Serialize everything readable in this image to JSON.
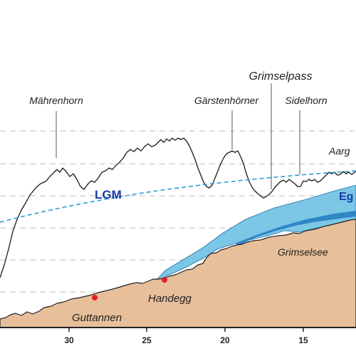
{
  "labels": {
    "grimselpass": "Grimselpass",
    "mahrenhorn": "Mährenhorn",
    "garstenhorner": "Gärstenhörner",
    "sidelhorn": "Sidelhorn",
    "aargletscher": "Aarg",
    "lgm": "LGM",
    "egger": "Eg",
    "grimselsee": "Grimselsee",
    "handegg": "Handegg",
    "guttannen": "Guttannen"
  },
  "x_axis": {
    "ticks": [
      "30",
      "25",
      "20",
      "15"
    ]
  },
  "colors": {
    "terrain": "#e7bf9a",
    "glacier": "#7cc6e6",
    "glacier_dark": "#2f86c4",
    "lgm_line": "#2b9fd6",
    "lgm_text": "#1b3aa6",
    "marker": "#e01e24",
    "grid": "#bdbdbd"
  }
}
